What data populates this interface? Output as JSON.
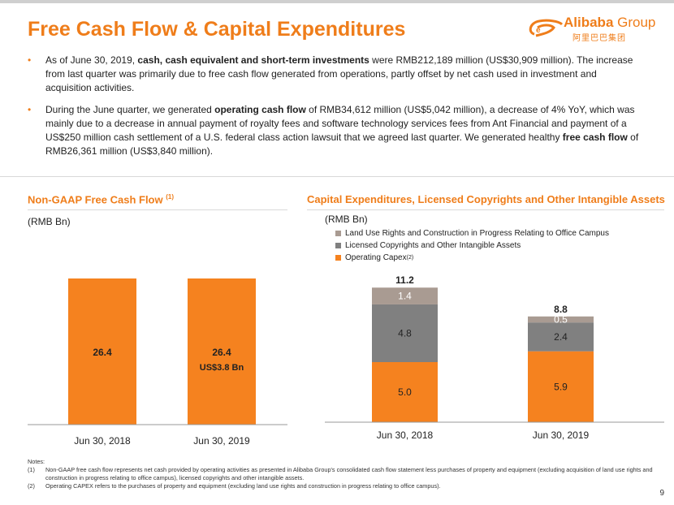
{
  "header": {
    "title": "Free Cash Flow & Capital Expenditures",
    "logo_text": "Alibaba",
    "logo_group": "Group",
    "logo_cn": "阿里巴巴集团"
  },
  "bullets": [
    {
      "pre": "As of June 30, 2019, ",
      "bold": "cash, cash equivalent and short-term investments",
      "post": " were RMB212,189 million (US$30,909 million). The increase from last quarter was primarily due to free cash flow generated from operations, partly offset by net cash used in investment and acquisition activities."
    },
    {
      "pre": "During the June quarter, we generated ",
      "bold": "operating cash flow",
      "post": " of RMB34,612 million (US$5,042 million), a decrease of 4% YoY, which was mainly due to a decrease in annual payment of royalty fees and software technology services fees from Ant Financial and payment of a US$250 million cash settlement of a U.S. federal class action lawsuit that we agreed last quarter. We generated healthy ",
      "bold2": "free cash flow",
      "post2": " of RMB26,361 million (US$3,840 million)."
    }
  ],
  "left_section": {
    "title": "Non-GAAP Free Cash Flow ",
    "title_sup": "(1)",
    "unit": "(RMB Bn)"
  },
  "right_section": {
    "title": "Capital Expenditures, Licensed Copyrights and Other Intangible Assets",
    "unit": "(RMB Bn)"
  },
  "legend": [
    {
      "label": "Land Use Rights and Construction in Progress Relating to Office Campus",
      "sup": "",
      "color": "#a99b92"
    },
    {
      "label": "Licensed Copyrights and Other Intangible Assets",
      "sup": "",
      "color": "#808080"
    },
    {
      "label": "Operating Capex",
      "sup": "(2)",
      "color": "#f5821f"
    }
  ],
  "chart_data": [
    {
      "type": "bar",
      "categories": [
        "Jun 30, 2018",
        "Jun 30, 2019"
      ],
      "values": [
        26.4,
        26.4
      ],
      "labels": [
        "26.4",
        "26.4"
      ],
      "sublabels": [
        "",
        "US$3.8 Bn"
      ],
      "ylabel": "(RMB Bn)",
      "color": "#f5821f"
    },
    {
      "type": "bar",
      "stacked": true,
      "categories": [
        "Jun 30, 2018",
        "Jun 30, 2019"
      ],
      "series": [
        {
          "name": "Operating Capex",
          "values": [
            5.0,
            5.9
          ],
          "labels": [
            "5.0",
            "5.9"
          ],
          "color": "#f5821f"
        },
        {
          "name": "Licensed Copyrights and Other Intangible Assets",
          "values": [
            4.8,
            2.4
          ],
          "labels": [
            "4.8",
            "2.4"
          ],
          "color": "#808080"
        },
        {
          "name": "Land Use Rights and Construction in Progress Relating to Office Campus",
          "values": [
            1.4,
            0.5
          ],
          "labels": [
            "1.4",
            "0.5"
          ],
          "color": "#a99b92"
        }
      ],
      "totals": [
        "11.2",
        "8.8"
      ],
      "ylabel": "(RMB Bn)"
    }
  ],
  "notes": {
    "heading": "Notes:",
    "items": [
      {
        "num": "(1)",
        "text": "Non-GAAP free cash flow represents net cash provided by operating activities as presented in Alibaba Group's consolidated cash flow statement less purchases of property and equipment (excluding acquisition of land use rights and construction in progress relating to office campus), licensed copyrights and other intangible assets."
      },
      {
        "num": "(2)",
        "text": "Operating CAPEX refers to the purchases of property and equipment (excluding land use rights and construction in progress relating to office campus)."
      }
    ]
  },
  "page_number": "9"
}
